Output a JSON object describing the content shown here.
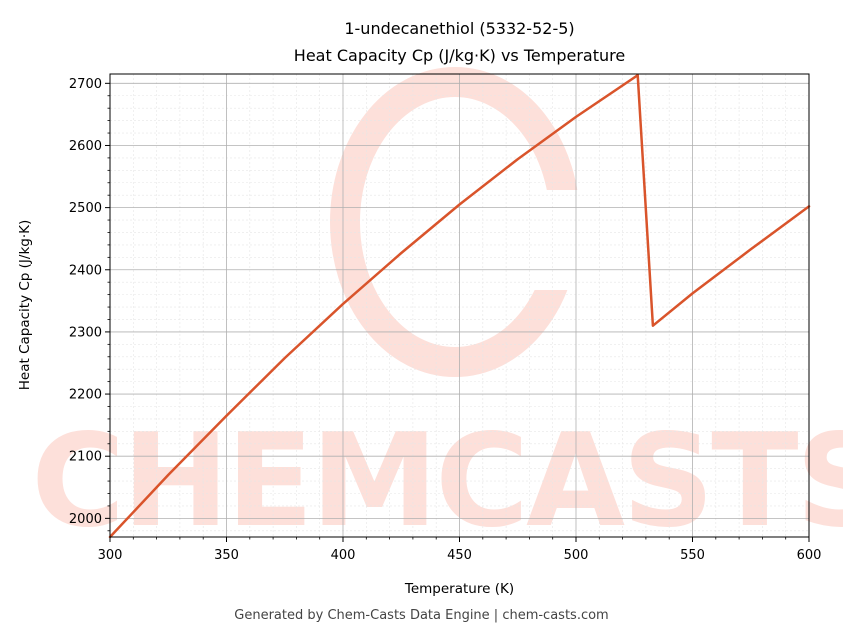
{
  "footer": "Generated by Chem-Casts Data Engine | chem-casts.com",
  "watermark": "CHEMCASTS",
  "chart_data": {
    "type": "line",
    "title": [
      "1-undecanethiol (5332-52-5)",
      "Heat Capacity Cp (J/kg·K) vs Temperature"
    ],
    "xlabel": "Temperature (K)",
    "ylabel": "Heat Capacity Cp (J/kg·K)",
    "xlim": [
      300,
      600
    ],
    "ylim": [
      1970,
      2715
    ],
    "xticks": [
      300,
      350,
      400,
      450,
      500,
      550,
      600
    ],
    "yticks": [
      2000,
      2100,
      2200,
      2300,
      2400,
      2500,
      2600,
      2700
    ],
    "grid": true,
    "line_color": "#d9542b",
    "series": [
      {
        "x": [
          300,
          325,
          350,
          375,
          400,
          425,
          450,
          475,
          500,
          526.5,
          533,
          550,
          575,
          600
        ],
        "values": [
          1970,
          2070,
          2165,
          2258,
          2345,
          2427,
          2505,
          2578,
          2646,
          2713,
          2310,
          2362,
          2433,
          2502
        ]
      }
    ]
  }
}
